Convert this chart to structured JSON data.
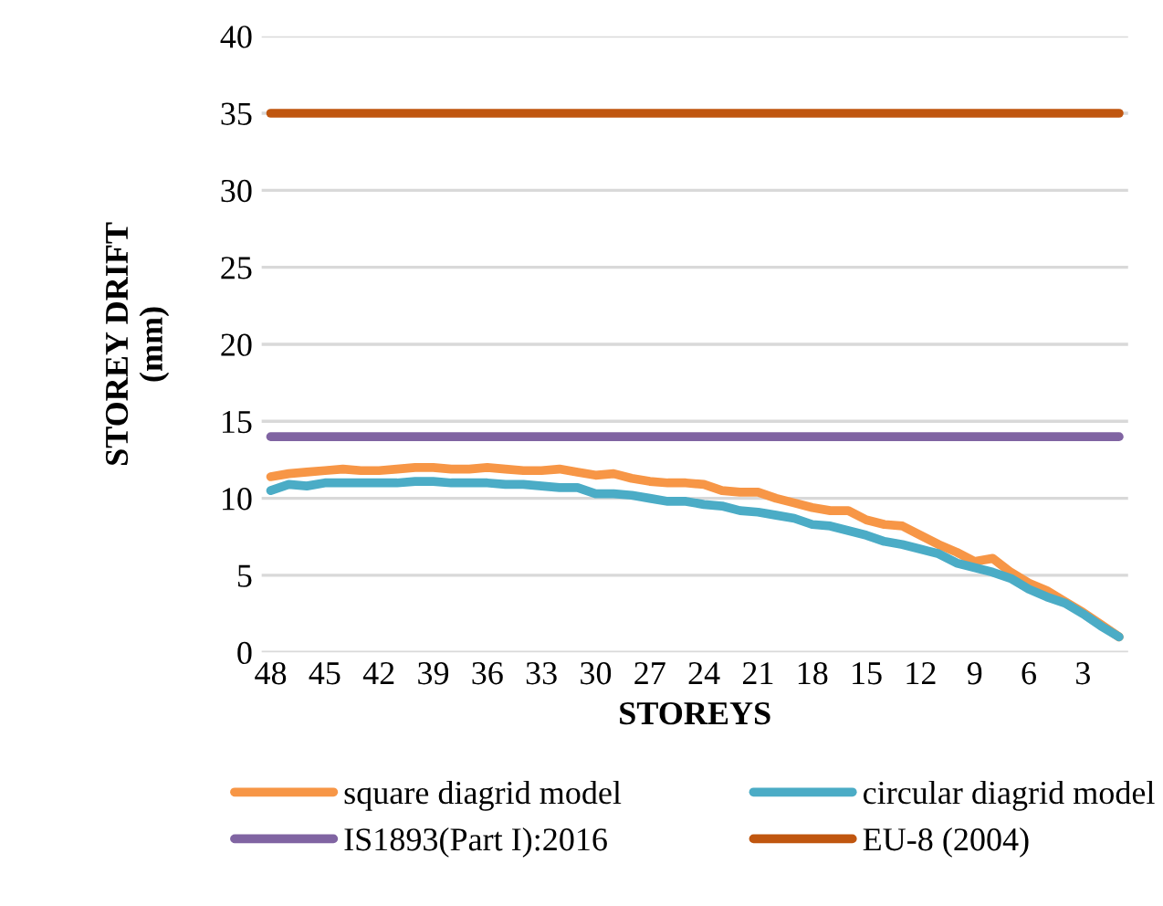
{
  "chart_data": {
    "type": "line",
    "xlabel": "STOREYS",
    "ylabel": "STOREY DRIFT\n(mm)",
    "categories": [
      "48",
      null,
      null,
      "45",
      null,
      null,
      "42",
      null,
      null,
      "39",
      null,
      null,
      "36",
      null,
      null,
      "33",
      null,
      null,
      "30",
      null,
      null,
      "27",
      null,
      null,
      "24",
      null,
      null,
      "21",
      null,
      null,
      "18",
      null,
      null,
      "15",
      null,
      null,
      "12",
      null,
      null,
      "9",
      null,
      null,
      "6",
      null,
      null,
      "3",
      null,
      null
    ],
    "ylim": [
      0,
      40
    ],
    "yticks": [
      0,
      5,
      10,
      15,
      20,
      25,
      30,
      35,
      40
    ],
    "grid": "y",
    "legend": "bottom",
    "marker": "none",
    "line_style": "solid",
    "series": [
      {
        "name": "square diagrid model",
        "color": "#f79646",
        "values": [
          11.4,
          11.6,
          11.7,
          11.8,
          11.9,
          11.8,
          11.8,
          11.9,
          12.0,
          12.0,
          11.9,
          11.9,
          12.0,
          11.9,
          11.8,
          11.8,
          11.9,
          11.7,
          11.5,
          11.6,
          11.3,
          11.1,
          11.0,
          11.0,
          10.9,
          10.5,
          10.4,
          10.4,
          10.0,
          9.7,
          9.4,
          9.2,
          9.2,
          8.6,
          8.3,
          8.2,
          7.6,
          7.0,
          6.5,
          5.9,
          6.1,
          5.2,
          4.5,
          4.0,
          3.3,
          2.6,
          1.8,
          1.0
        ]
      },
      {
        "name": "circular diagrid model",
        "color": "#4bacc6",
        "values": [
          10.5,
          10.9,
          10.8,
          11.0,
          11.0,
          11.0,
          11.0,
          11.0,
          11.1,
          11.1,
          11.0,
          11.0,
          11.0,
          10.9,
          10.9,
          10.8,
          10.7,
          10.7,
          10.3,
          10.3,
          10.2,
          10.0,
          9.8,
          9.8,
          9.6,
          9.5,
          9.2,
          9.1,
          8.9,
          8.7,
          8.3,
          8.2,
          7.9,
          7.6,
          7.2,
          7.0,
          6.7,
          6.4,
          5.8,
          5.5,
          5.2,
          4.8,
          4.1,
          3.6,
          3.2,
          2.5,
          1.7,
          1.0
        ]
      },
      {
        "name": "IS1893(Part I):2016",
        "color": "#8064a2",
        "values": [
          14,
          14,
          14,
          14,
          14,
          14,
          14,
          14,
          14,
          14,
          14,
          14,
          14,
          14,
          14,
          14,
          14,
          14,
          14,
          14,
          14,
          14,
          14,
          14,
          14,
          14,
          14,
          14,
          14,
          14,
          14,
          14,
          14,
          14,
          14,
          14,
          14,
          14,
          14,
          14,
          14,
          14,
          14,
          14,
          14,
          14,
          14,
          14
        ]
      },
      {
        "name": "EU-8 (2004)",
        "color": "#c0560f",
        "values": [
          35,
          35,
          35,
          35,
          35,
          35,
          35,
          35,
          35,
          35,
          35,
          35,
          35,
          35,
          35,
          35,
          35,
          35,
          35,
          35,
          35,
          35,
          35,
          35,
          35,
          35,
          35,
          35,
          35,
          35,
          35,
          35,
          35,
          35,
          35,
          35,
          35,
          35,
          35,
          35,
          35,
          35,
          35,
          35,
          35,
          35,
          35,
          35
        ]
      }
    ]
  }
}
